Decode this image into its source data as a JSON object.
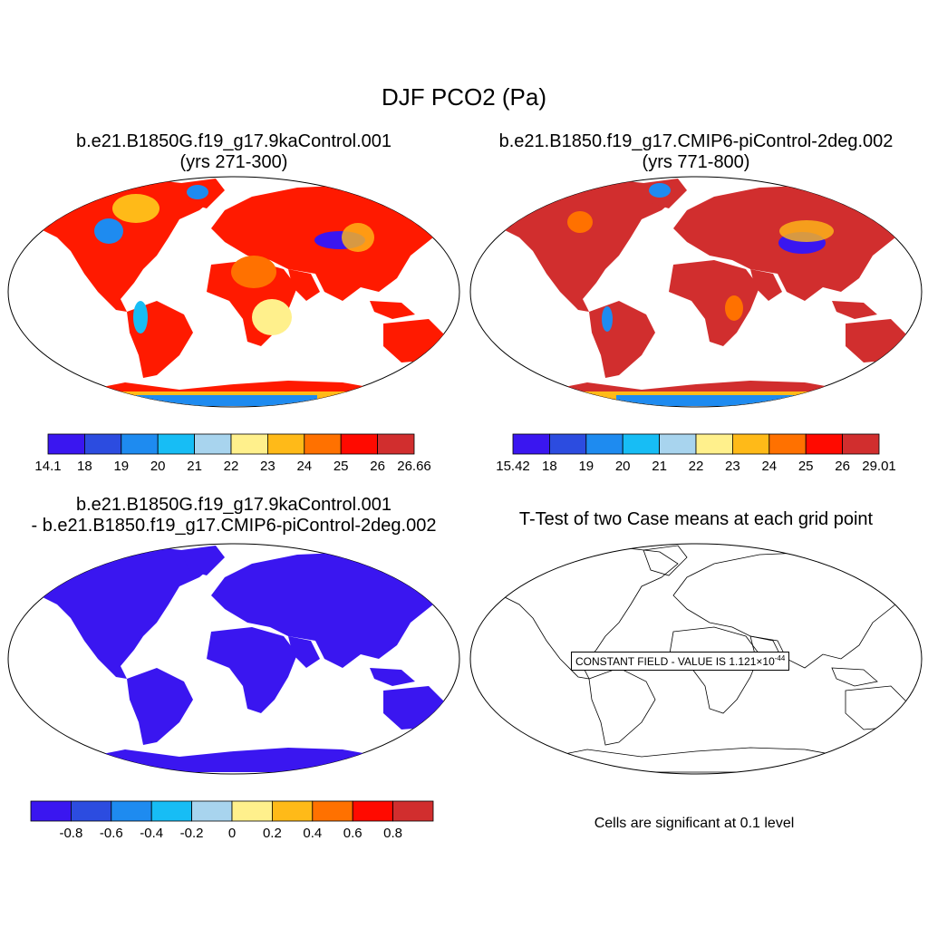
{
  "figure": {
    "title": "DJF PCO2 (Pa)"
  },
  "panels": {
    "case1": {
      "title_line1": "b.e21.B1850G.f19_g17.9kaControl.001",
      "title_line2": "(yrs 271-300)"
    },
    "case2": {
      "title_line1": "b.e21.B1850.f19_g17.CMIP6-piControl-2deg.002",
      "title_line2": "(yrs 771-800)"
    },
    "diff": {
      "title_line1": "b.e21.B1850G.f19_g17.9kaControl.001",
      "title_line2": "- b.e21.B1850.f19_g17.CMIP6-piControl-2deg.002"
    },
    "ttest": {
      "title": "T-Test of two Case means at each grid point",
      "constant_text": "CONSTANT FIELD - VALUE IS 1.121",
      "constant_exp": "-44",
      "significance_note": "Cells are significant at 0.1 level"
    }
  },
  "colors": {
    "scale": [
      "#3a16f0",
      "#2c4ce0",
      "#1e8bf0",
      "#17bdf5",
      "#a8d4ee",
      "#fff08c",
      "#ffba18",
      "#ff7100",
      "#ff0a00",
      "#d12e2e"
    ],
    "land_case1_main": "#ff1a00",
    "land_case2_main": "#d12e2e",
    "land_diff": "#3a16f0"
  },
  "colorbars": {
    "case1": {
      "labels": [
        "14.1",
        "18",
        "19",
        "20",
        "21",
        "22",
        "23",
        "24",
        "25",
        "26",
        "26.66"
      ]
    },
    "case2": {
      "labels": [
        "15.42",
        "18",
        "19",
        "20",
        "21",
        "22",
        "23",
        "24",
        "25",
        "26",
        "29.01"
      ]
    },
    "diff": {
      "labels": [
        "-0.8",
        "-0.6",
        "-0.4",
        "-0.2",
        "0",
        "0.2",
        "0.4",
        "0.6",
        "0.8"
      ]
    }
  }
}
